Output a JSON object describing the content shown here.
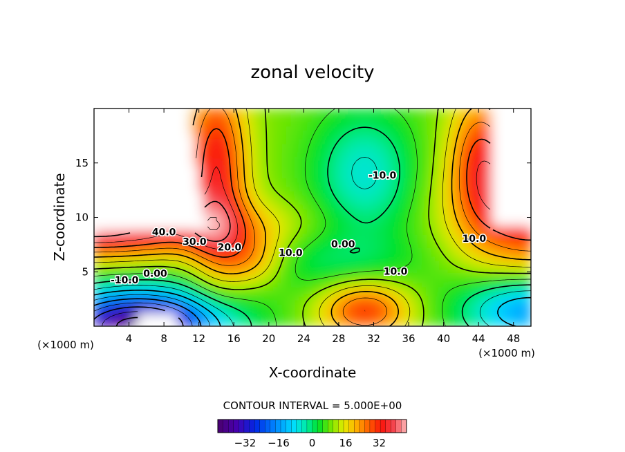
{
  "chart_data": {
    "type": "contour",
    "title": "zonal velocity",
    "xlabel": "X-coordinate",
    "ylabel": "Z-coordinate",
    "x_unit": "(×1000 m)",
    "y_unit": "(×1000 m)",
    "xlim": [
      0,
      50
    ],
    "ylim": [
      0,
      20
    ],
    "xticks": [
      4,
      8,
      12,
      16,
      20,
      24,
      28,
      32,
      36,
      40,
      44,
      48
    ],
    "yticks": [
      5,
      10,
      15
    ],
    "contour_interval_text": "CONTOUR INTERVAL = 5.000E+00",
    "contour_interval": 5.0,
    "value_range": [
      -45,
      45
    ],
    "colorbar_ticks": [
      -32,
      -16,
      0,
      16,
      32
    ],
    "contour_labels": [
      {
        "text": "40.0",
        "x": 8,
        "y": 8.6
      },
      {
        "text": "30.0",
        "x": 11.5,
        "y": 7.7
      },
      {
        "text": "20.0",
        "x": 15.5,
        "y": 7.2
      },
      {
        "text": "10.0",
        "x": 22.5,
        "y": 6.7
      },
      {
        "text": "0.00",
        "x": 7,
        "y": 4.8
      },
      {
        "text": "-10.0",
        "x": 3.5,
        "y": 4.2
      },
      {
        "text": "0.00",
        "x": 28.5,
        "y": 7.5
      },
      {
        "text": "10.0",
        "x": 34.5,
        "y": 5.0
      },
      {
        "text": "-10.0",
        "x": 33,
        "y": 13.8
      },
      {
        "text": "10.0",
        "x": 43.5,
        "y": 8.0
      }
    ]
  }
}
